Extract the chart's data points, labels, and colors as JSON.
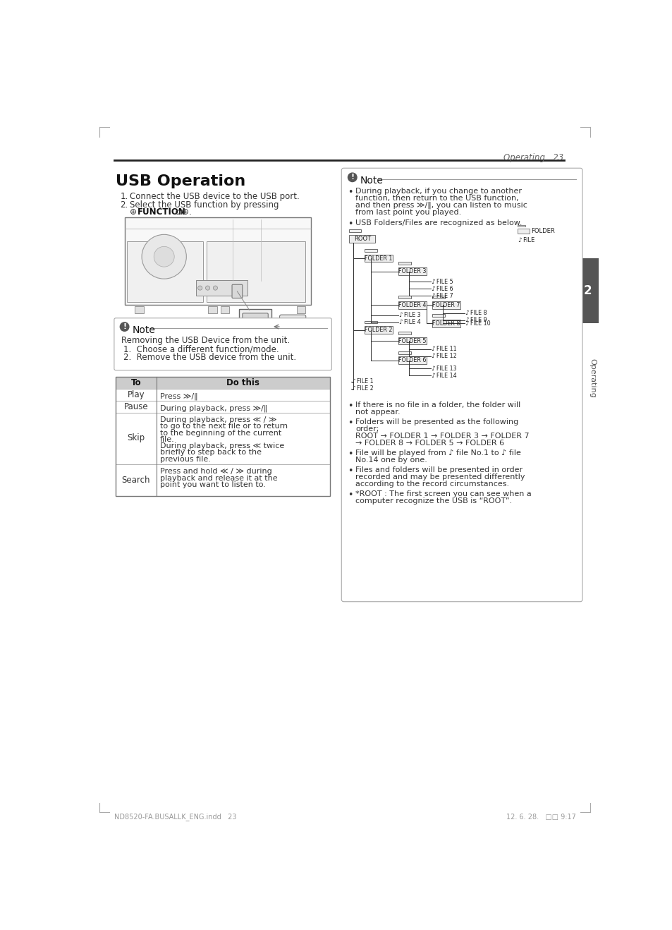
{
  "page_bg": "#ffffff",
  "header_text": "Operating   23",
  "title": "USB Operation",
  "step1": "Connect the USB device to the USB port.",
  "step2_a": "Select the USB function by pressing",
  "step2_b": "FUNCTION",
  "step2_c": " or ",
  "note1_header": "Note",
  "note1_body": "Removing the USB Device from the unit.",
  "note1_items": [
    "Choose a different function/mode.",
    "Remove the USB device from the unit."
  ],
  "table_header": [
    "To",
    "Do this"
  ],
  "table_rows": [
    [
      "Play",
      "Press ≫/‖"
    ],
    [
      "Pause",
      "During playback, press ≫/‖"
    ],
    [
      "Skip",
      "During playback, press ≪ / ≫\nto go to the next file or to return\nto the beginning of the current\nfile.\nDuring playback, press ≪ twice\nbriefly to step back to the\nprevious file."
    ],
    [
      "Search",
      "Press and hold ≪ / ≫ during\nplayback and release it at the\npoint you want to listen to."
    ]
  ],
  "note2_header": "Note",
  "bullet1": "During playback, if you change to another\nfunction, then return to the USB function,\nand then press ≫/‖, you can listen to music\nfrom last point you played.",
  "bullet2": "USB Folders/Files are recognized as below.",
  "bullet3": "If there is no file in a folder, the folder will\nnot appear.",
  "bullet4": "Folders will be presented as the following\norder;\nROOT → FOLDER 1 → FOLDER 3 → FOLDER 7\n→ FOLDER 8 → FOLDER 5 → FOLDER 6",
  "bullet5": "File will be played from ♪ file No.1 to ♪ file\nNo.14 one by one.",
  "bullet6": "Files and folders will be presented in order\nrecorded and may be presented differently\naccording to the record circumstances.",
  "bullet7": "*ROOT : The first screen you can see when a\ncomputer recognize the USB is “ROOT”.",
  "footer_left": "ND8520-FA.BUSALLK_ENG.indd   23",
  "footer_right": "12. 6. 28.   □□ 9:17",
  "text_color": "#333333",
  "dark_text": "#111111",
  "gray_line": "#333333",
  "sidebar_bg": "#555555",
  "note_border": "#aaaaaa",
  "table_header_bg": "#cccccc",
  "table_border": "#888888",
  "tree_line": "#333333",
  "mark_color": "#aaaaaa"
}
